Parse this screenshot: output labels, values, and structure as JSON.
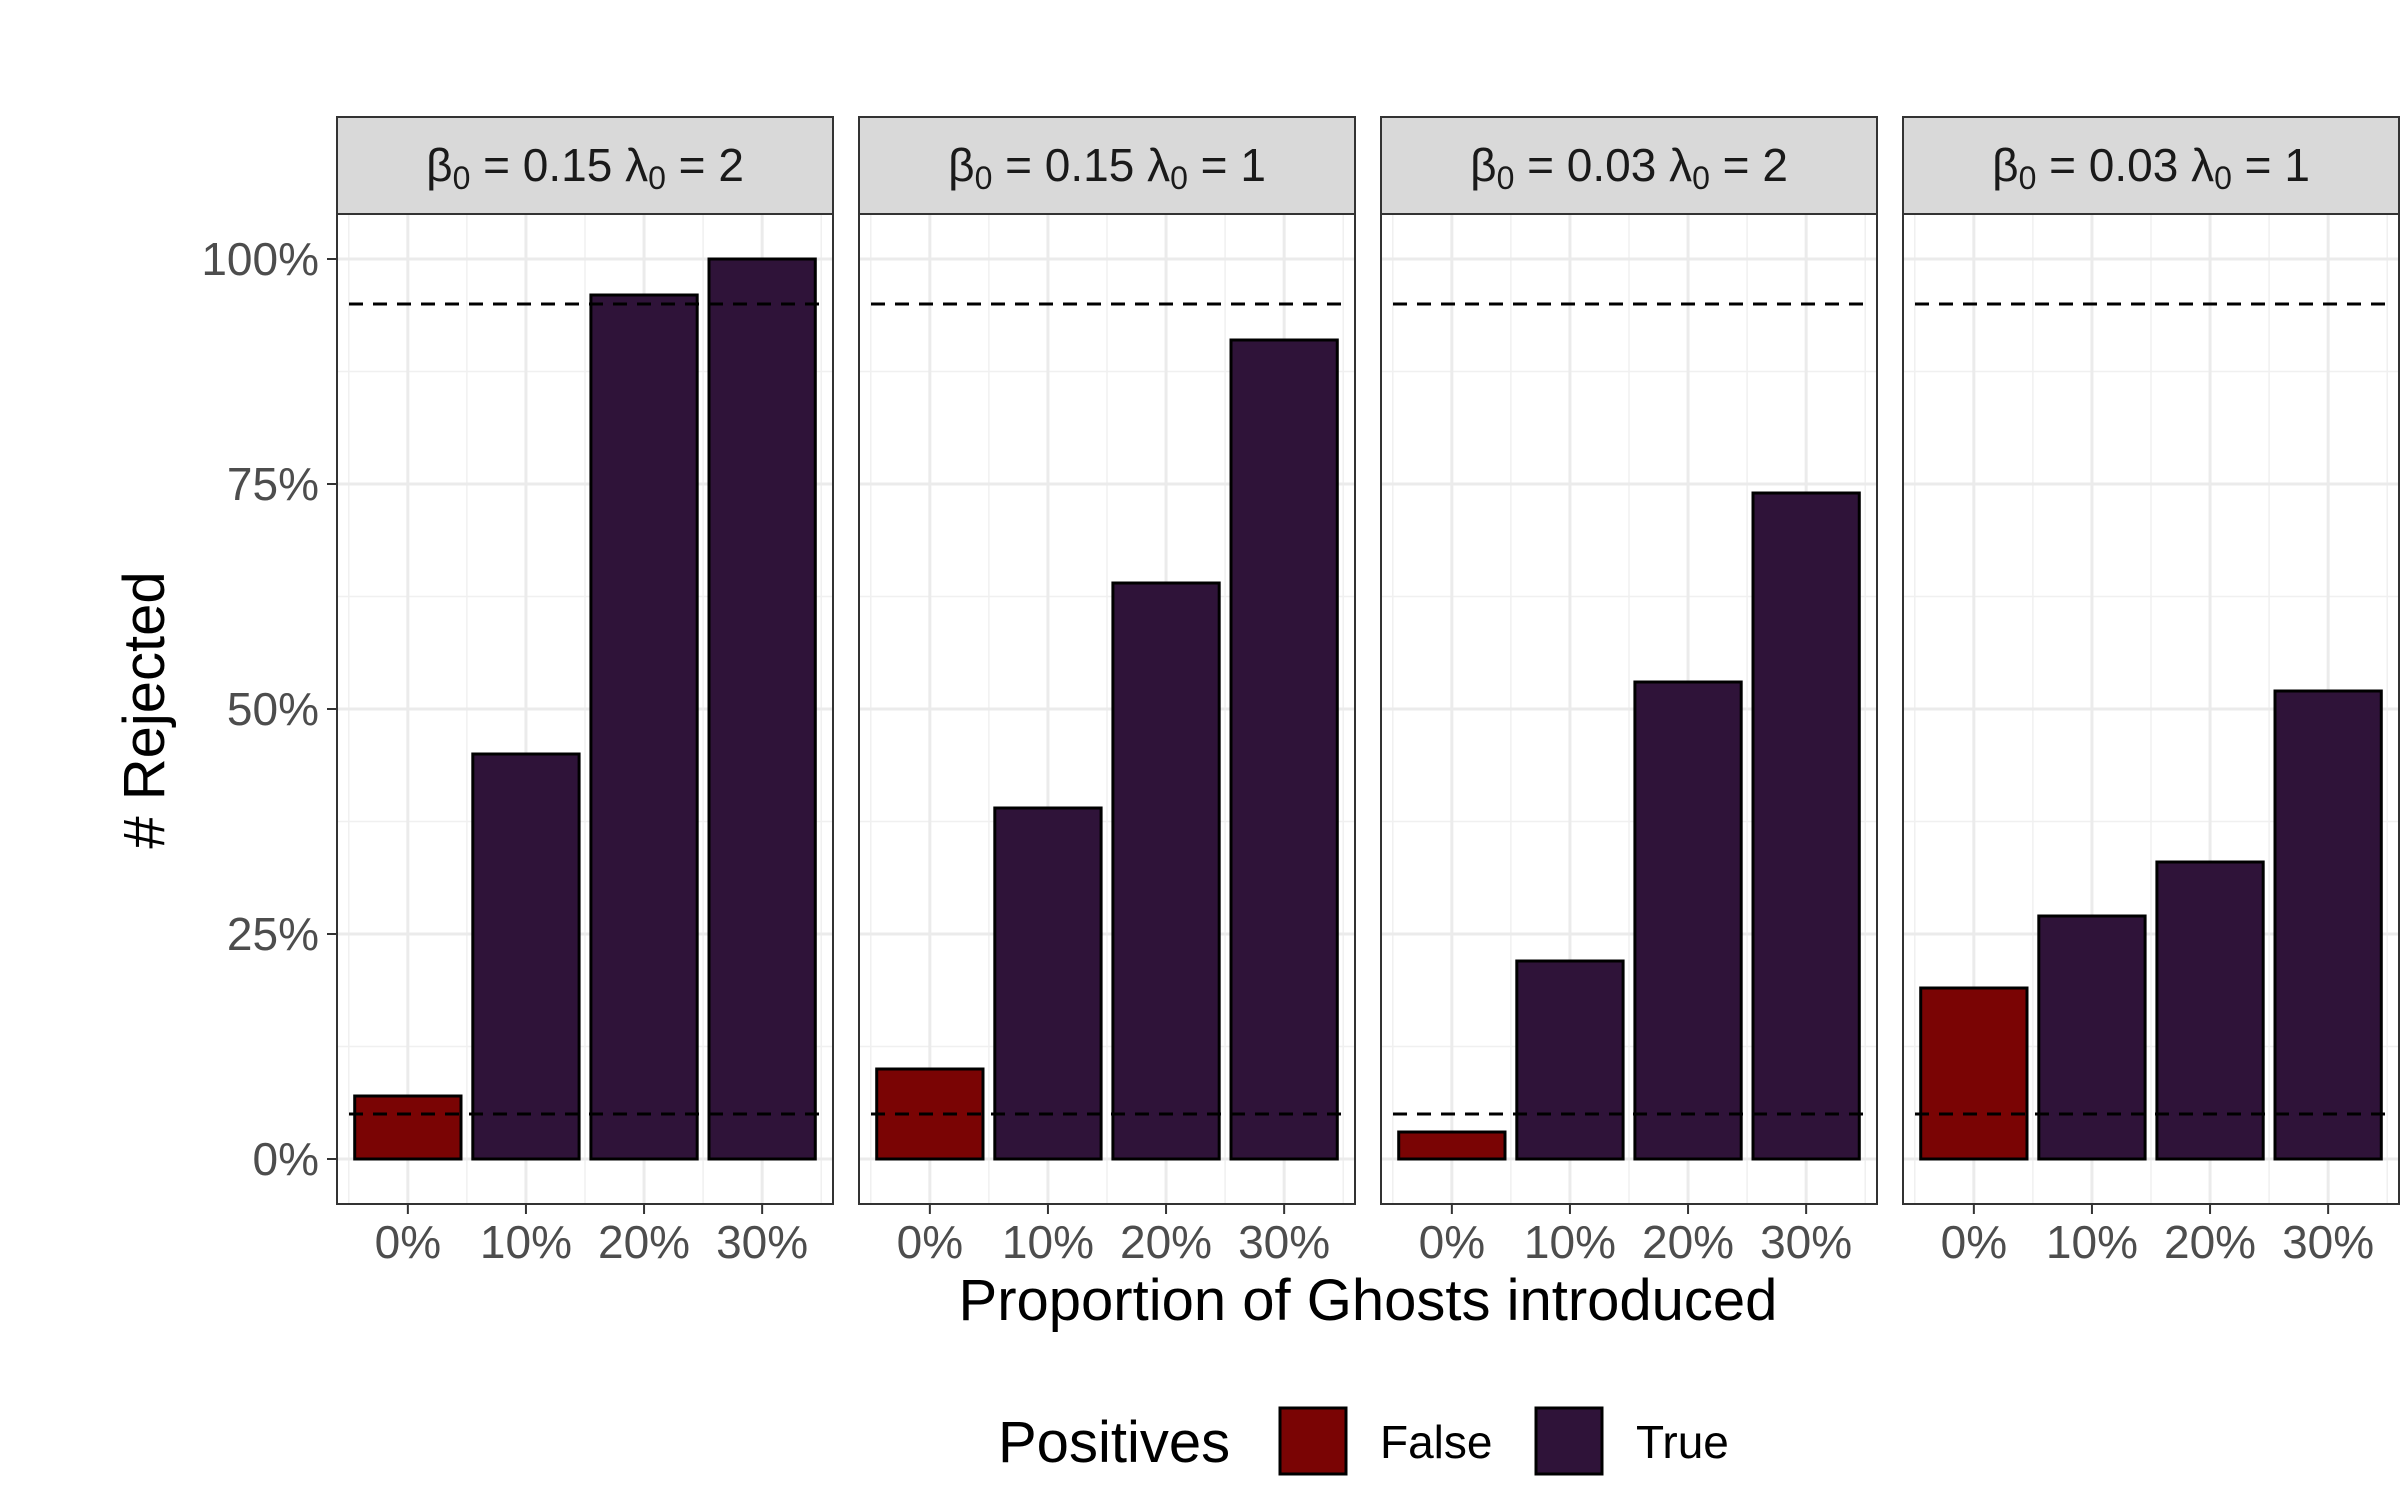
{
  "chart_data": {
    "type": "bar",
    "facet_labels": [
      "β0 = 0.15 λ0 = 2",
      "β0 = 0.15 λ0 = 1",
      "β0 = 0.03 λ0 = 2",
      "β0 = 0.03 λ0 = 1"
    ],
    "facets": [
      {
        "beta": "0.15",
        "lambda": "2",
        "values": [
          7,
          45,
          96,
          100
        ]
      },
      {
        "beta": "0.15",
        "lambda": "1",
        "values": [
          10,
          39,
          64,
          91
        ]
      },
      {
        "beta": "0.03",
        "lambda": "2",
        "values": [
          3,
          22,
          53,
          74
        ]
      },
      {
        "beta": "0.03",
        "lambda": "1",
        "values": [
          19,
          27,
          33,
          52
        ]
      }
    ],
    "categories": [
      "0%",
      "10%",
      "20%",
      "30%"
    ],
    "positives": [
      "False",
      "True",
      "True",
      "True"
    ],
    "xlabel": "Proportion of Ghosts introduced",
    "ylabel": "# Rejected",
    "ylim": [
      -5,
      105
    ],
    "yticks": [
      0,
      25,
      50,
      75,
      100
    ],
    "ytick_labels": [
      "0%",
      "25%",
      "50%",
      "75%",
      "100%"
    ],
    "reference_lines": [
      5,
      95
    ],
    "legend": {
      "title": "Positives",
      "placement": "bottom",
      "entries": [
        {
          "label": "False",
          "color": "#7a0404"
        },
        {
          "label": "True",
          "color": "#2f1339"
        }
      ]
    },
    "grid": true,
    "colors": {
      "False": "#7a0404",
      "True": "#2f1339"
    }
  }
}
